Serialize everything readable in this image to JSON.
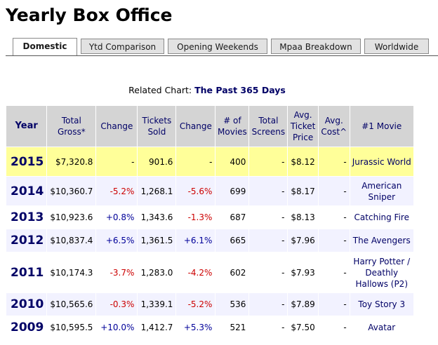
{
  "title": "Yearly Box Office",
  "tabs": [
    "Domestic",
    "Ytd Comparison",
    "Opening Weekends",
    "Mpaa Breakdown",
    "Worldwide"
  ],
  "related": {
    "label": "Related Chart:",
    "link": "The Past 365 Days"
  },
  "table": {
    "headers": [
      "Year",
      "Total Gross*",
      "Change",
      "Tickets Sold",
      "Change",
      "# of Movies",
      "Total Screens",
      "Avg. Ticket Price",
      "Avg. Cost^",
      "#1 Movie"
    ],
    "rows": [
      {
        "year": "2015",
        "gross": "$7,320.8",
        "change": "-",
        "tickets": "901.6",
        "tchange": "-",
        "movies": "400",
        "screens": "-",
        "price": "$8.12",
        "cost": "-",
        "top": "Jurassic World"
      },
      {
        "year": "2014",
        "gross": "$10,360.7",
        "change": "-5.2%",
        "tickets": "1,268.1",
        "tchange": "-5.6%",
        "movies": "699",
        "screens": "-",
        "price": "$8.17",
        "cost": "-",
        "top": "American Sniper"
      },
      {
        "year": "2013",
        "gross": "$10,923.6",
        "change": "+0.8%",
        "tickets": "1,343.6",
        "tchange": "-1.3%",
        "movies": "687",
        "screens": "-",
        "price": "$8.13",
        "cost": "-",
        "top": "Catching Fire"
      },
      {
        "year": "2012",
        "gross": "$10,837.4",
        "change": "+6.5%",
        "tickets": "1,361.5",
        "tchange": "+6.1%",
        "movies": "665",
        "screens": "-",
        "price": "$7.96",
        "cost": "-",
        "top": "The Avengers"
      },
      {
        "year": "2011",
        "gross": "$10,174.3",
        "change": "-3.7%",
        "tickets": "1,283.0",
        "tchange": "-4.2%",
        "movies": "602",
        "screens": "-",
        "price": "$7.93",
        "cost": "-",
        "top": "Harry Potter / Deathly Hallows (P2)"
      },
      {
        "year": "2010",
        "gross": "$10,565.6",
        "change": "-0.3%",
        "tickets": "1,339.1",
        "tchange": "-5.2%",
        "movies": "536",
        "screens": "-",
        "price": "$7.89",
        "cost": "-",
        "top": "Toy Story 3"
      },
      {
        "year": "2009",
        "gross": "$10,595.5",
        "change": "+10.0%",
        "tickets": "1,412.7",
        "tchange": "+5.3%",
        "movies": "521",
        "screens": "-",
        "price": "$7.50",
        "cost": "-",
        "top": "Avatar"
      }
    ]
  },
  "colors": {
    "highlight_row": "#ffff99",
    "header_bg": "#d4d4d4",
    "negative": "#cc0000",
    "positive": "#000099",
    "link": "#000066"
  }
}
